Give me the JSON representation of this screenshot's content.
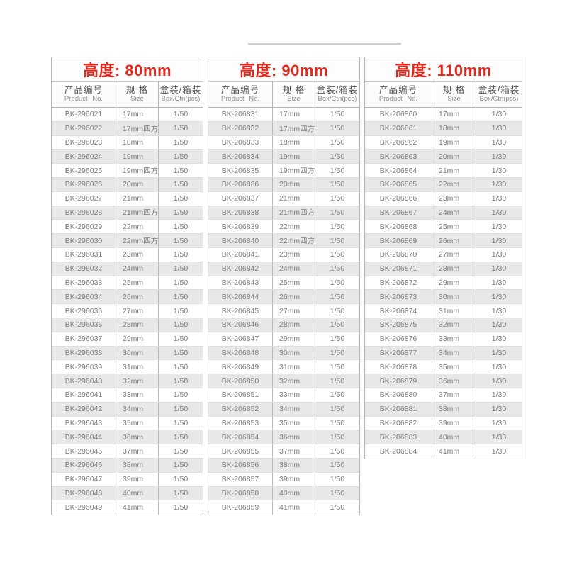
{
  "colors": {
    "title_red": "#e02a20",
    "stripe_gray": "#e8e8e8",
    "border_gray": "#b5b5b5",
    "cell_text": "#7c7c7c"
  },
  "tables": [
    {
      "title": "高度: 80mm",
      "columns": [
        {
          "zh": "产品编号",
          "en": "Product No."
        },
        {
          "zh": "规  格",
          "en": "Size"
        },
        {
          "zh": "盒装/箱装",
          "en": "Box/Ctn(pcs)"
        }
      ],
      "rows": [
        [
          "BK-296021",
          "17mm",
          "1/50"
        ],
        [
          "BK-296022",
          "17mm四方",
          "1/50"
        ],
        [
          "BK-296023",
          "18mm",
          "1/50"
        ],
        [
          "BK-296024",
          "19mm",
          "1/50"
        ],
        [
          "BK-296025",
          "19mm四方",
          "1/50"
        ],
        [
          "BK-296026",
          "20mm",
          "1/50"
        ],
        [
          "BK-296027",
          "21mm",
          "1/50"
        ],
        [
          "BK-296028",
          "21mm四方",
          "1/50"
        ],
        [
          "BK-296029",
          "22mm",
          "1/50"
        ],
        [
          "BK-296030",
          "22mm四方",
          "1/50"
        ],
        [
          "BK-296031",
          "23mm",
          "1/50"
        ],
        [
          "BK-296032",
          "24mm",
          "1/50"
        ],
        [
          "BK-296033",
          "25mm",
          "1/50"
        ],
        [
          "BK-296034",
          "26mm",
          "1/50"
        ],
        [
          "BK-296035",
          "27mm",
          "1/50"
        ],
        [
          "BK-296036",
          "28mm",
          "1/50"
        ],
        [
          "BK-296037",
          "29mm",
          "1/50"
        ],
        [
          "BK-296038",
          "30mm",
          "1/50"
        ],
        [
          "BK-296039",
          "31mm",
          "1/50"
        ],
        [
          "BK-296040",
          "32mm",
          "1/50"
        ],
        [
          "BK-296041",
          "33mm",
          "1/50"
        ],
        [
          "BK-296042",
          "34mm",
          "1/50"
        ],
        [
          "BK-296043",
          "35mm",
          "1/50"
        ],
        [
          "BK-296044",
          "36mm",
          "1/50"
        ],
        [
          "BK-296045",
          "37mm",
          "1/50"
        ],
        [
          "BK-296046",
          "38mm",
          "1/50"
        ],
        [
          "BK-296047",
          "39mm",
          "1/50"
        ],
        [
          "BK-296048",
          "40mm",
          "1/50"
        ],
        [
          "BK-296049",
          "41mm",
          "1/50"
        ]
      ]
    },
    {
      "title": "高度: 90mm",
      "columns": [
        {
          "zh": "产品编号",
          "en": "Product No."
        },
        {
          "zh": "规  格",
          "en": "Size"
        },
        {
          "zh": "盒装/箱装",
          "en": "Box/Ctn(pcs)"
        }
      ],
      "rows": [
        [
          "BK-206831",
          "17mm",
          "1/50"
        ],
        [
          "BK-206832",
          "17mm四方",
          "1/50"
        ],
        [
          "BK-206833",
          "18mm",
          "1/50"
        ],
        [
          "BK-206834",
          "19mm",
          "1/50"
        ],
        [
          "BK-206835",
          "19mm四方",
          "1/50"
        ],
        [
          "BK-206836",
          "20mm",
          "1/50"
        ],
        [
          "BK-206837",
          "21mm",
          "1/50"
        ],
        [
          "BK-206838",
          "21mm四方",
          "1/50"
        ],
        [
          "BK-206839",
          "22mm",
          "1/50"
        ],
        [
          "BK-206840",
          "22mm四方",
          "1/50"
        ],
        [
          "BK-206841",
          "23mm",
          "1/50"
        ],
        [
          "BK-206842",
          "24mm",
          "1/50"
        ],
        [
          "BK-206843",
          "25mm",
          "1/50"
        ],
        [
          "BK-206844",
          "26mm",
          "1/50"
        ],
        [
          "BK-206845",
          "27mm",
          "1/50"
        ],
        [
          "BK-206846",
          "28mm",
          "1/50"
        ],
        [
          "BK-206847",
          "29mm",
          "1/50"
        ],
        [
          "BK-206848",
          "30mm",
          "1/50"
        ],
        [
          "BK-206849",
          "31mm",
          "1/50"
        ],
        [
          "BK-206850",
          "32mm",
          "1/50"
        ],
        [
          "BK-206851",
          "33mm",
          "1/50"
        ],
        [
          "BK-206852",
          "34mm",
          "1/50"
        ],
        [
          "BK-206853",
          "35mm",
          "1/50"
        ],
        [
          "BK-206854",
          "36mm",
          "1/50"
        ],
        [
          "BK-206855",
          "37mm",
          "1/50"
        ],
        [
          "BK-206856",
          "38mm",
          "1/50"
        ],
        [
          "BK-206857",
          "39mm",
          "1/50"
        ],
        [
          "BK-206858",
          "40mm",
          "1/50"
        ],
        [
          "BK-206859",
          "41mm",
          "1/50"
        ]
      ]
    },
    {
      "title": "高度: 110mm",
      "columns": [
        {
          "zh": "产品编号",
          "en": "Product No."
        },
        {
          "zh": "规  格",
          "en": "Size"
        },
        {
          "zh": "盒装/箱装",
          "en": "Box/Ctn(pcs)"
        }
      ],
      "rows": [
        [
          "BK-206860",
          "17mm",
          "1/30"
        ],
        [
          "BK-206861",
          "18mm",
          "1/30"
        ],
        [
          "BK-206862",
          "19mm",
          "1/30"
        ],
        [
          "BK-206863",
          "20mm",
          "1/30"
        ],
        [
          "BK-206864",
          "21mm",
          "1/30"
        ],
        [
          "BK-206865",
          "22mm",
          "1/30"
        ],
        [
          "BK-206866",
          "23mm",
          "1/30"
        ],
        [
          "BK-206867",
          "24mm",
          "1/30"
        ],
        [
          "BK-206868",
          "25mm",
          "1/30"
        ],
        [
          "BK-206869",
          "26mm",
          "1/30"
        ],
        [
          "BK-206870",
          "27mm",
          "1/30"
        ],
        [
          "BK-206871",
          "28mm",
          "1/30"
        ],
        [
          "BK-206872",
          "29mm",
          "1/30"
        ],
        [
          "BK-206873",
          "30mm",
          "1/30"
        ],
        [
          "BK-206874",
          "31mm",
          "1/30"
        ],
        [
          "BK-206875",
          "32mm",
          "1/30"
        ],
        [
          "BK-206876",
          "33mm",
          "1/30"
        ],
        [
          "BK-206877",
          "34mm",
          "1/30"
        ],
        [
          "BK-206878",
          "35mm",
          "1/30"
        ],
        [
          "BK-206879",
          "36mm",
          "1/30"
        ],
        [
          "BK-206880",
          "37mm",
          "1/30"
        ],
        [
          "BK-206881",
          "38mm",
          "1/30"
        ],
        [
          "BK-206882",
          "39mm",
          "1/30"
        ],
        [
          "BK-206883",
          "40mm",
          "1/30"
        ],
        [
          "BK-206884",
          "41mm",
          "1/30"
        ]
      ]
    }
  ]
}
